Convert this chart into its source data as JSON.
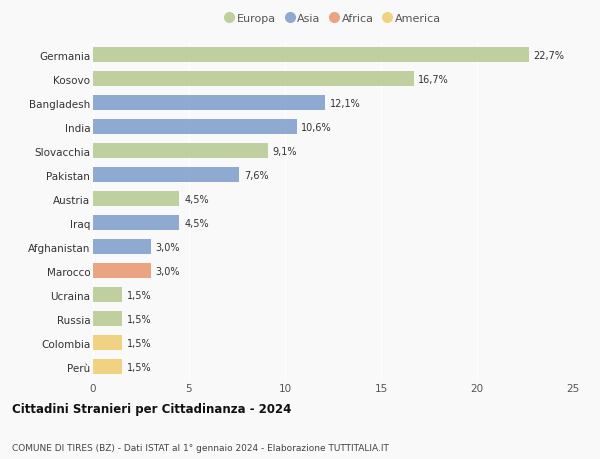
{
  "categories": [
    "Germania",
    "Kosovo",
    "Bangladesh",
    "India",
    "Slovacchia",
    "Pakistan",
    "Austria",
    "Iraq",
    "Afghanistan",
    "Marocco",
    "Ucraina",
    "Russia",
    "Colombia",
    "Perù"
  ],
  "values": [
    22.7,
    16.7,
    12.1,
    10.6,
    9.1,
    7.6,
    4.5,
    4.5,
    3.0,
    3.0,
    1.5,
    1.5,
    1.5,
    1.5
  ],
  "labels": [
    "22,7%",
    "16,7%",
    "12,1%",
    "10,6%",
    "9,1%",
    "7,6%",
    "4,5%",
    "4,5%",
    "3,0%",
    "3,0%",
    "1,5%",
    "1,5%",
    "1,5%",
    "1,5%"
  ],
  "continents": [
    "Europa",
    "Europa",
    "Asia",
    "Asia",
    "Europa",
    "Asia",
    "Europa",
    "Asia",
    "Asia",
    "Africa",
    "Europa",
    "Europa",
    "America",
    "America"
  ],
  "colors": {
    "Europa": "#b5c98e",
    "Asia": "#7b9cc9",
    "Africa": "#e8956d",
    "America": "#f0cc6e"
  },
  "legend_order": [
    "Europa",
    "Asia",
    "Africa",
    "America"
  ],
  "title1": "Cittadini Stranieri per Cittadinanza - 2024",
  "title2": "COMUNE DI TIRES (BZ) - Dati ISTAT al 1° gennaio 2024 - Elaborazione TUTTITALIA.IT",
  "xlim": [
    0,
    25
  ],
  "xticks": [
    0,
    5,
    10,
    15,
    20,
    25
  ],
  "background_color": "#f9f9f9",
  "bar_alpha": 0.85
}
